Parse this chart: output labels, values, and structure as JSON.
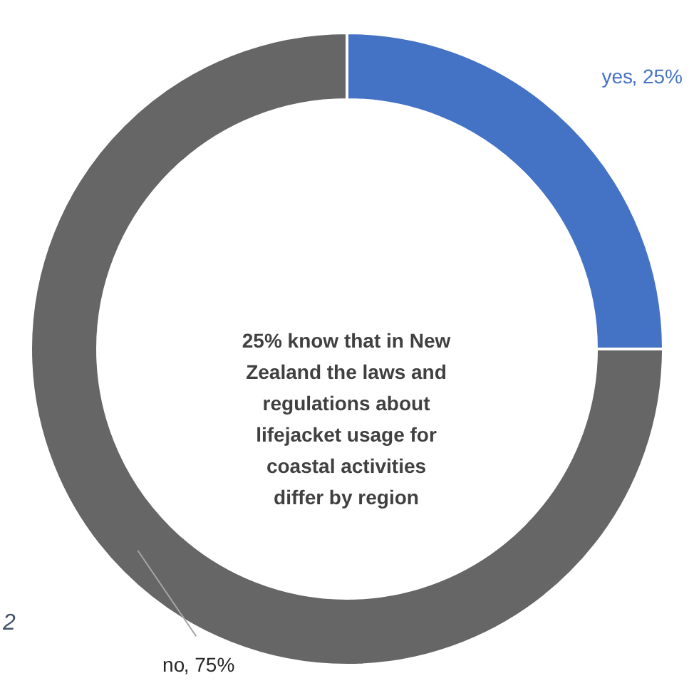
{
  "chart_data": {
    "type": "donut",
    "categories": [
      "yes",
      "no"
    ],
    "values": [
      25,
      75
    ],
    "colors": [
      "#4472c4",
      "#666666"
    ],
    "value_labels": [
      ", 25%",
      ", 75%"
    ],
    "legend": false,
    "annotations": [
      "25% know that in New Zealand the laws and regulations about lifejacket usage for coastal activities differ by region",
      "2"
    ]
  }
}
